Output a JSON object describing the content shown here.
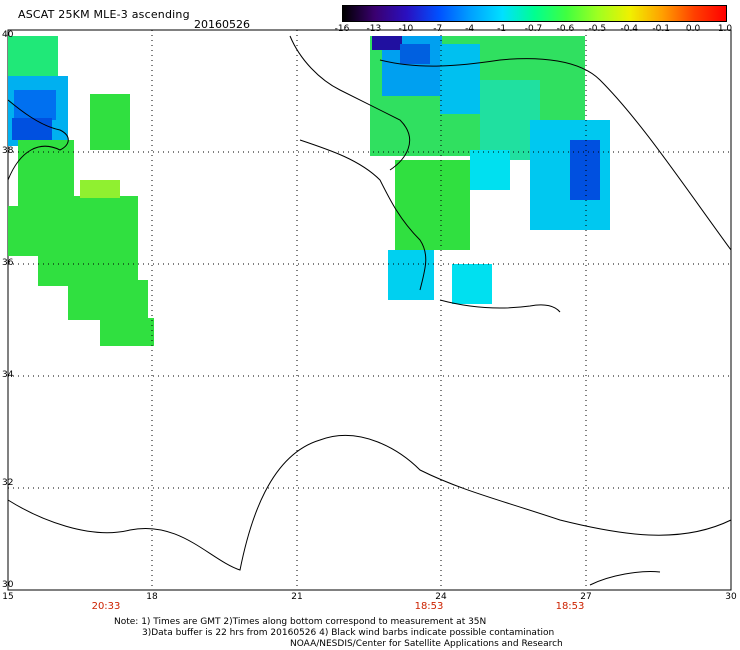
{
  "header": {
    "title": "ASCAT 25KM MLE-3 ascending",
    "date": "20160526"
  },
  "colorbar": {
    "labels": [
      "-16",
      "-13",
      "-10",
      "-7",
      "-4",
      "-1",
      "-0.7",
      "-0.6",
      "-0.5",
      "-0.4",
      "-0.1",
      "0.0",
      "1.0"
    ],
    "colors": [
      "#000000",
      "#3a0070",
      "#2a10c0",
      "#0050ff",
      "#00a0ff",
      "#00e0ff",
      "#00ff90",
      "#40ff40",
      "#a0ff20",
      "#f0f000",
      "#ffa000",
      "#ff4000",
      "#ff0000"
    ]
  },
  "axes": {
    "lon_labels": [
      "15",
      "18",
      "21",
      "24",
      "27",
      "30"
    ],
    "lat_labels": [
      "40",
      "38",
      "36",
      "34",
      "32",
      "30"
    ]
  },
  "times": [
    "20:33",
    "18:53",
    "18:53"
  ],
  "notes": {
    "line1": "Note: 1) Times are GMT 2)Times along bottom correspond to measurement at 35N",
    "line2": "3)Data buffer is 22 hrs from 20160526 4) Black wind barbs indicate possible contamination",
    "line3": "NOAA/NESDIS/Center for Satellite Applications and Research"
  }
}
